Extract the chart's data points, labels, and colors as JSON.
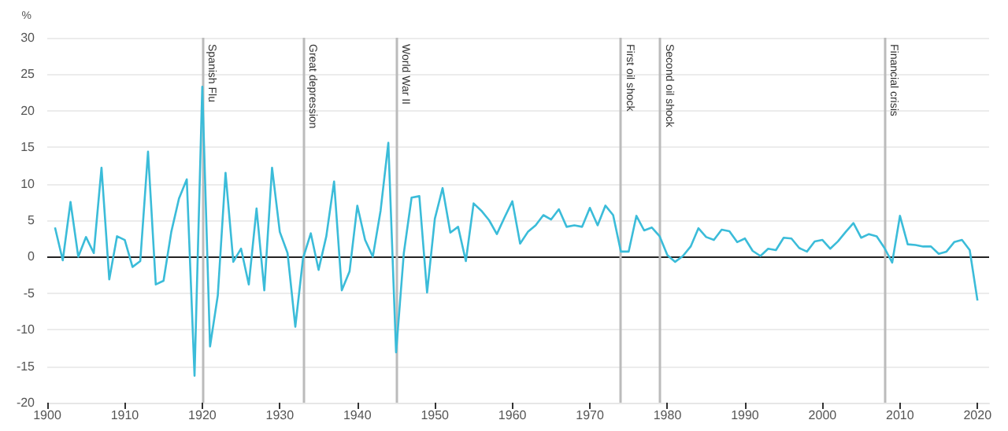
{
  "chart_data": {
    "type": "line",
    "ylabel": "%",
    "x": [
      1901,
      1902,
      1903,
      1904,
      1905,
      1906,
      1907,
      1908,
      1909,
      1910,
      1911,
      1912,
      1913,
      1914,
      1915,
      1916,
      1917,
      1918,
      1919,
      1920,
      1921,
      1922,
      1923,
      1924,
      1925,
      1926,
      1927,
      1928,
      1929,
      1930,
      1931,
      1932,
      1933,
      1934,
      1935,
      1936,
      1937,
      1938,
      1939,
      1940,
      1941,
      1942,
      1943,
      1944,
      1945,
      1946,
      1947,
      1948,
      1949,
      1950,
      1951,
      1952,
      1953,
      1954,
      1955,
      1956,
      1957,
      1958,
      1959,
      1960,
      1961,
      1962,
      1963,
      1964,
      1965,
      1966,
      1967,
      1968,
      1969,
      1970,
      1971,
      1972,
      1973,
      1974,
      1975,
      1976,
      1977,
      1978,
      1979,
      1980,
      1981,
      1982,
      1983,
      1984,
      1985,
      1986,
      1987,
      1988,
      1989,
      1990,
      1991,
      1992,
      1993,
      1994,
      1995,
      1996,
      1997,
      1998,
      1999,
      2000,
      2001,
      2002,
      2003,
      2004,
      2005,
      2006,
      2007,
      2008,
      2009,
      2010,
      2011,
      2012,
      2013,
      2014,
      2015,
      2016,
      2017,
      2018,
      2019,
      2020
    ],
    "series": [
      {
        "color": "#3bbcd9",
        "values": [
          4,
          -0.5,
          7.5,
          0,
          2.7,
          0.5,
          12.2,
          -3.1,
          2.8,
          2.3,
          -1.4,
          -0.6,
          14.4,
          -3.8,
          -3.3,
          3.4,
          8,
          10.6,
          -16.3,
          23.3,
          -12.3,
          -5.3,
          11.5,
          -0.7,
          1.1,
          -3.8,
          6.6,
          -4.6,
          12.2,
          3.4,
          0.5,
          -9.6,
          -0.2,
          3.2,
          -1.8,
          2.8,
          10.3,
          -4.6,
          -2,
          7,
          2.3,
          0,
          6.3,
          15.6,
          -13.1,
          0.5,
          8.1,
          8.3,
          -4.9,
          5.2,
          9.4,
          3.3,
          4.1,
          -0.6,
          7.3,
          6.3,
          5,
          3.1,
          5.4,
          7.6,
          1.8,
          3.4,
          4.3,
          5.7,
          5.1,
          6.5,
          4.1,
          4.3,
          4.1,
          6.7,
          4.3,
          7,
          5.7,
          0.7,
          0.7,
          5.6,
          3.6,
          4,
          2.8,
          0.2,
          -0.7,
          0.1,
          1.4,
          3.9,
          2.7,
          2.3,
          3.7,
          3.5,
          2,
          2.5,
          0.8,
          0.1,
          1.1,
          0.9,
          2.6,
          2.5,
          1.2,
          0.7,
          2.1,
          2.3,
          1.1,
          2.1,
          3.4,
          4.6,
          2.6,
          3.1,
          2.8,
          1.2,
          -0.8,
          5.6,
          1.7,
          1.6,
          1.4,
          1.4,
          0.4,
          0.7,
          2,
          2.3,
          0.9,
          -6
        ]
      }
    ],
    "xlim": [
      1900,
      2021.5
    ],
    "xticks": [
      1900,
      1910,
      1920,
      1930,
      1940,
      1950,
      1960,
      1970,
      1980,
      1990,
      2000,
      2010,
      2020
    ],
    "ylim": [
      -20,
      30
    ],
    "yticks": [
      -20,
      -15,
      -10,
      -5,
      0,
      5,
      10,
      15,
      20,
      25,
      30
    ],
    "grid": "y",
    "marker": "none",
    "line_style": "solid",
    "ref_lines": [
      {
        "axis": "y",
        "value": 0,
        "color": "#222222"
      },
      {
        "axis": "x",
        "value": 1920,
        "label": "Spanish Flu",
        "color": "#bbbbbb"
      },
      {
        "axis": "x",
        "value": 1933,
        "label": "Great depression",
        "color": "#bbbbbb"
      },
      {
        "axis": "x",
        "value": 1945,
        "label": "World War II",
        "color": "#bbbbbb"
      },
      {
        "axis": "x",
        "value": 1974,
        "label": "First oil shock",
        "color": "#bbbbbb"
      },
      {
        "axis": "x",
        "value": 1979,
        "label": "Second oil shock",
        "color": "#bbbbbb"
      },
      {
        "axis": "x",
        "value": 2008,
        "label": "Financial crisis",
        "color": "#bbbbbb"
      }
    ]
  }
}
